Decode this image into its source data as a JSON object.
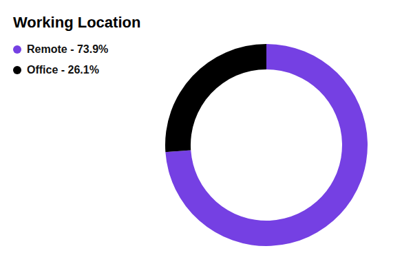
{
  "chart_data": {
    "type": "pie",
    "title": "Working Location",
    "categories": [
      "Remote - 73.9%",
      "Office - 26.1%"
    ],
    "values": [
      73.9,
      26.1
    ],
    "colors": [
      "#7540e3",
      "#000000"
    ]
  }
}
